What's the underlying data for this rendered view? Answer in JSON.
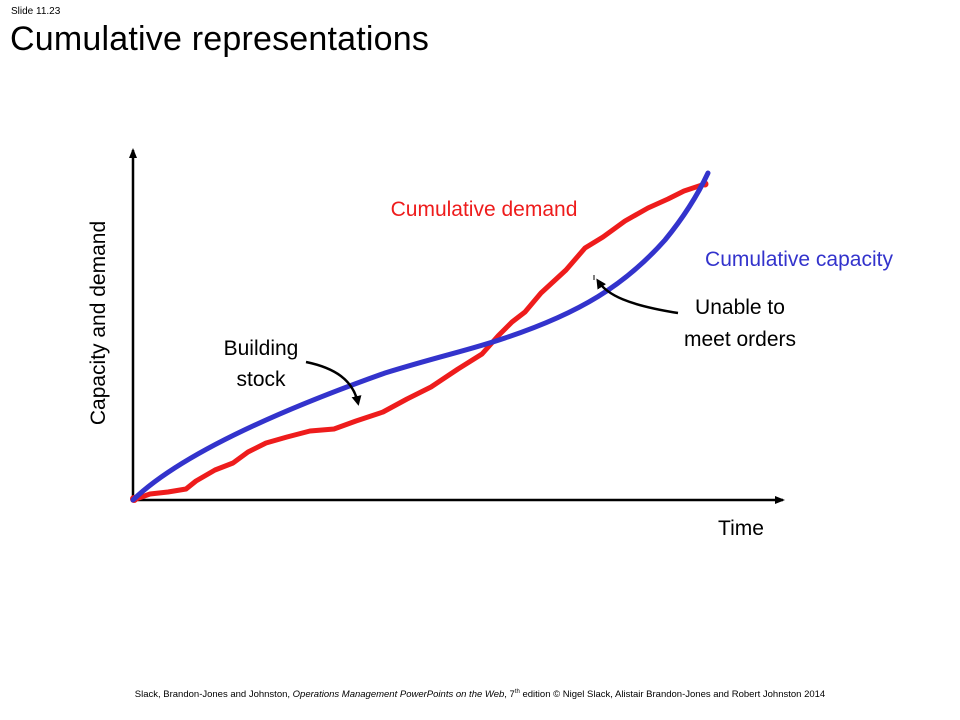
{
  "slide": {
    "number": "Slide 11.23",
    "title": "Cumulative representations"
  },
  "diagram": {
    "y_axis_label": "Capacity and demand",
    "x_axis_label": "Time",
    "demand_label": "Cumulative demand",
    "capacity_label": "Cumulative capacity",
    "building_stock_line1": "Building",
    "building_stock_line2": "stock",
    "unable_line1": "Unable to",
    "unable_line2": "meet orders",
    "colors": {
      "demand": "#ee1c1c",
      "capacity": "#3333cc",
      "axis": "#000000"
    }
  },
  "footer": {
    "authors": "Slack, Brandon-Jones and Johnston, ",
    "book": "Operations Management PowerPoints on the Web",
    "edition_prefix": ", 7",
    "edition_sup": "th",
    "rest": " edition © Nigel Slack, Alistair Brandon-Jones and Robert Johnston 2014"
  }
}
